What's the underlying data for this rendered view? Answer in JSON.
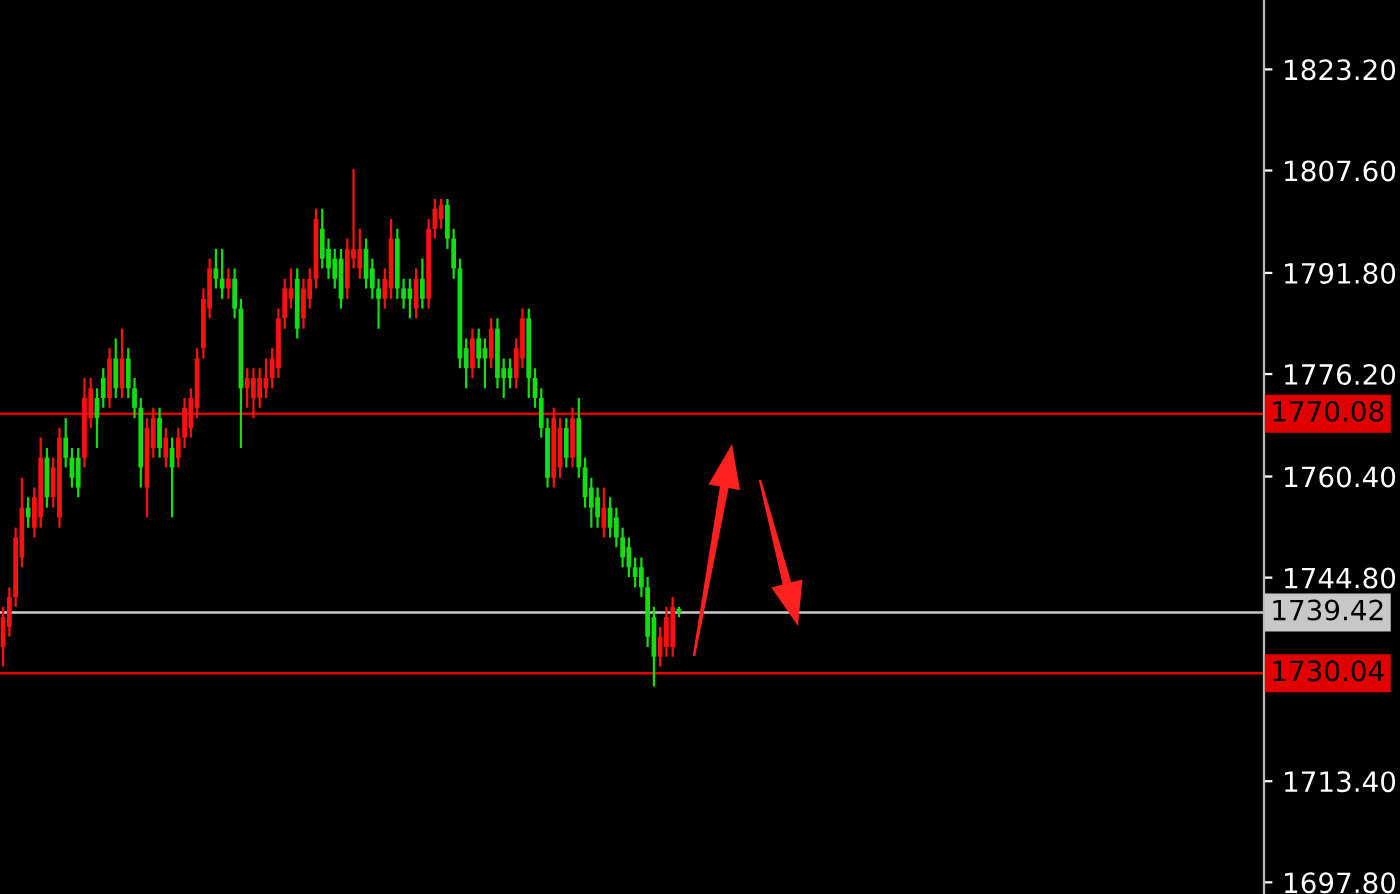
{
  "chart_data": {
    "type": "candlestick",
    "categories": [
      null,
      null,
      null,
      null,
      null,
      null,
      null,
      null,
      null,
      null,
      null,
      null,
      null,
      null,
      null,
      null,
      null,
      null,
      null,
      null,
      null,
      null,
      null,
      null,
      null,
      null,
      null,
      null,
      null,
      null,
      null,
      null,
      null,
      null,
      null,
      null,
      null,
      null,
      null,
      null,
      null,
      null,
      null,
      null,
      null,
      null,
      null,
      null,
      null,
      null,
      null,
      null,
      null,
      null,
      null,
      null,
      null,
      null,
      null,
      null,
      null,
      null,
      null,
      null,
      null,
      null,
      null,
      null,
      null,
      null,
      null,
      null,
      null,
      null,
      null,
      null,
      null,
      null,
      null,
      null,
      null,
      null,
      null,
      null,
      null,
      null,
      null,
      null,
      null,
      null,
      null,
      null,
      null,
      null,
      null,
      null,
      null,
      null,
      null,
      null,
      null,
      null,
      null,
      null,
      null,
      null,
      null,
      null,
      null,
      null,
      null,
      null,
      null,
      null,
      null,
      null,
      null,
      null,
      null,
      null,
      null,
      null,
      null,
      null,
      null,
      null,
      null,
      null,
      null,
      null,
      null,
      null,
      null,
      null,
      null,
      null,
      null,
      null,
      null,
      null,
      null,
      null,
      null,
      null,
      null,
      null,
      null,
      null,
      null,
      null,
      null,
      null,
      null,
      null,
      null,
      null,
      null,
      null,
      null,
      null,
      null,
      null,
      null,
      null,
      null,
      null,
      null,
      null,
      null,
      null,
      null,
      null,
      null,
      null,
      null,
      null,
      null,
      null,
      null,
      null,
      null,
      null,
      null,
      null,
      null,
      null,
      null,
      null,
      null,
      null,
      null,
      null,
      null,
      null,
      null,
      null,
      null,
      null,
      null,
      null,
      null,
      null
    ],
    "ohlc": [
      [
        1734.1,
        1740.3,
        1731.1,
        1738.7
      ],
      [
        1737.2,
        1743.3,
        1735.7,
        1741.8
      ],
      [
        1741.8,
        1752.5,
        1740.3,
        1751.0
      ],
      [
        1747.9,
        1760.2,
        1746.4,
        1755.6
      ],
      [
        1755.6,
        1757.2,
        1752.5,
        1754.1
      ],
      [
        1752.5,
        1758.7,
        1751.0,
        1757.2
      ],
      [
        1754.1,
        1766.4,
        1752.5,
        1763.3
      ],
      [
        1763.3,
        1764.8,
        1755.6,
        1757.2
      ],
      [
        1757.2,
        1763.3,
        1755.6,
        1761.8
      ],
      [
        1754.1,
        1767.9,
        1752.5,
        1766.4
      ],
      [
        1766.4,
        1769.4,
        1761.8,
        1763.3
      ],
      [
        1763.3,
        1764.8,
        1758.7,
        1760.2
      ],
      [
        1763.3,
        1764.8,
        1757.2,
        1758.7
      ],
      [
        1763.3,
        1775.6,
        1761.8,
        1772.5
      ],
      [
        1769.4,
        1775.6,
        1767.9,
        1774.0
      ],
      [
        1772.5,
        1774.0,
        1764.8,
        1769.4
      ],
      [
        1775.6,
        1777.1,
        1771.0,
        1772.5
      ],
      [
        1772.5,
        1780.2,
        1771.0,
        1778.6
      ],
      [
        1778.6,
        1781.7,
        1772.5,
        1774.0
      ],
      [
        1774.0,
        1783.2,
        1772.5,
        1778.6
      ],
      [
        1778.6,
        1780.2,
        1772.5,
        1774.0
      ],
      [
        1774.0,
        1775.6,
        1769.4,
        1771.0
      ],
      [
        1771.0,
        1772.5,
        1758.7,
        1761.8
      ],
      [
        1758.7,
        1769.4,
        1754.1,
        1767.9
      ],
      [
        1764.8,
        1771.0,
        1763.3,
        1769.4
      ],
      [
        1769.4,
        1771.0,
        1763.3,
        1764.8
      ],
      [
        1763.3,
        1767.9,
        1761.8,
        1766.4
      ],
      [
        1764.8,
        1766.4,
        1754.1,
        1761.8
      ],
      [
        1763.3,
        1767.9,
        1761.8,
        1766.4
      ],
      [
        1766.4,
        1772.5,
        1764.8,
        1771.0
      ],
      [
        1767.9,
        1774.0,
        1766.4,
        1772.5
      ],
      [
        1771.0,
        1780.2,
        1769.4,
        1778.6
      ],
      [
        1780.2,
        1789.4,
        1778.6,
        1787.8
      ],
      [
        1786.3,
        1794.0,
        1784.8,
        1792.5
      ],
      [
        1792.5,
        1795.5,
        1789.4,
        1790.9
      ],
      [
        1790.9,
        1795.5,
        1787.8,
        1789.4
      ],
      [
        1789.4,
        1792.5,
        1787.8,
        1790.9
      ],
      [
        1790.9,
        1792.5,
        1784.8,
        1786.3
      ],
      [
        1786.3,
        1787.8,
        1764.8,
        1774.0
      ],
      [
        1774.0,
        1777.1,
        1771.0,
        1775.6
      ],
      [
        1772.5,
        1777.1,
        1769.4,
        1775.6
      ],
      [
        1772.5,
        1777.1,
        1771.0,
        1775.6
      ],
      [
        1774.0,
        1778.6,
        1772.5,
        1775.6
      ],
      [
        1775.6,
        1780.2,
        1774.0,
        1778.6
      ],
      [
        1777.1,
        1786.3,
        1775.6,
        1784.8
      ],
      [
        1784.8,
        1790.9,
        1783.2,
        1789.4
      ],
      [
        1787.8,
        1792.5,
        1786.3,
        1789.4
      ],
      [
        1790.9,
        1792.5,
        1781.7,
        1783.2
      ],
      [
        1784.8,
        1790.9,
        1783.2,
        1789.4
      ],
      [
        1787.8,
        1792.5,
        1786.3,
        1790.9
      ],
      [
        1790.9,
        1801.7,
        1789.4,
        1800.1
      ],
      [
        1798.6,
        1801.7,
        1792.5,
        1794.0
      ],
      [
        1795.5,
        1797.1,
        1790.9,
        1792.5
      ],
      [
        1794.0,
        1795.5,
        1789.4,
        1790.9
      ],
      [
        1794.0,
        1795.5,
        1786.3,
        1787.8
      ],
      [
        1789.4,
        1797.1,
        1787.8,
        1795.5
      ],
      [
        1794.0,
        1807.8,
        1792.5,
        1795.5
      ],
      [
        1792.5,
        1798.6,
        1790.9,
        1795.5
      ],
      [
        1795.5,
        1797.1,
        1789.4,
        1790.9
      ],
      [
        1792.5,
        1794.0,
        1787.8,
        1789.4
      ],
      [
        1789.4,
        1790.9,
        1783.2,
        1787.8
      ],
      [
        1787.8,
        1792.5,
        1786.3,
        1790.9
      ],
      [
        1789.4,
        1800.1,
        1787.8,
        1797.1
      ],
      [
        1797.1,
        1798.6,
        1787.8,
        1789.4
      ],
      [
        1789.4,
        1790.9,
        1786.3,
        1787.8
      ],
      [
        1789.4,
        1790.9,
        1784.8,
        1787.8
      ],
      [
        1786.3,
        1792.5,
        1784.8,
        1790.9
      ],
      [
        1790.9,
        1794.0,
        1786.3,
        1787.8
      ],
      [
        1787.8,
        1800.1,
        1786.3,
        1798.6
      ],
      [
        1798.6,
        1803.2,
        1797.1,
        1801.7
      ],
      [
        1800.1,
        1803.2,
        1798.6,
        1802.3
      ],
      [
        1802.3,
        1803.2,
        1795.5,
        1797.1
      ],
      [
        1797.1,
        1798.6,
        1790.9,
        1792.5
      ],
      [
        1792.5,
        1794.0,
        1777.1,
        1778.6
      ],
      [
        1780.2,
        1781.7,
        1774.0,
        1777.1
      ],
      [
        1777.1,
        1783.2,
        1775.6,
        1781.7
      ],
      [
        1781.7,
        1783.2,
        1777.1,
        1778.6
      ],
      [
        1780.2,
        1781.7,
        1774.0,
        1778.6
      ],
      [
        1778.6,
        1784.8,
        1777.1,
        1783.2
      ],
      [
        1783.2,
        1784.8,
        1774.0,
        1775.6
      ],
      [
        1777.1,
        1778.6,
        1772.5,
        1775.6
      ],
      [
        1777.1,
        1778.6,
        1774.0,
        1775.6
      ],
      [
        1775.6,
        1781.7,
        1774.0,
        1780.2
      ],
      [
        1778.6,
        1786.3,
        1777.1,
        1784.8
      ],
      [
        1784.8,
        1786.3,
        1772.5,
        1775.6
      ],
      [
        1775.6,
        1777.1,
        1771.0,
        1772.5
      ],
      [
        1772.5,
        1774.0,
        1766.4,
        1767.9
      ],
      [
        1767.9,
        1769.4,
        1758.7,
        1760.2
      ],
      [
        1760.2,
        1771.0,
        1758.7,
        1769.4
      ],
      [
        1761.8,
        1769.4,
        1760.2,
        1767.9
      ],
      [
        1767.9,
        1769.4,
        1761.8,
        1763.3
      ],
      [
        1763.3,
        1771.0,
        1761.8,
        1769.4
      ],
      [
        1769.4,
        1772.5,
        1760.2,
        1761.8
      ],
      [
        1761.8,
        1763.3,
        1755.6,
        1757.2
      ],
      [
        1758.7,
        1760.2,
        1752.5,
        1755.6
      ],
      [
        1757.2,
        1758.7,
        1752.5,
        1754.1
      ],
      [
        1752.5,
        1758.7,
        1751.0,
        1755.6
      ],
      [
        1755.6,
        1757.2,
        1751.0,
        1752.5
      ],
      [
        1754.1,
        1755.6,
        1749.5,
        1751.0
      ],
      [
        1751.0,
        1752.5,
        1746.4,
        1747.9
      ],
      [
        1749.5,
        1751.0,
        1744.9,
        1746.4
      ],
      [
        1746.4,
        1747.9,
        1743.3,
        1744.9
      ],
      [
        1746.4,
        1747.9,
        1741.8,
        1743.3
      ],
      [
        1743.3,
        1744.9,
        1734.1,
        1735.7
      ],
      [
        1738.7,
        1740.3,
        1728.0,
        1732.6
      ],
      [
        1732.6,
        1737.2,
        1731.1,
        1735.7
      ],
      [
        1734.1,
        1740.3,
        1732.6,
        1738.7
      ],
      [
        1734.1,
        1741.8,
        1732.6,
        1740.3
      ],
      [
        1740.0,
        1740.3,
        1738.7,
        1739.4
      ],
      null,
      null,
      null,
      null,
      null,
      null,
      null,
      null,
      null,
      null,
      null,
      null,
      null,
      null,
      null,
      null,
      null,
      null,
      null,
      null,
      null,
      null,
      null,
      null,
      null,
      null,
      null,
      null,
      null,
      null,
      null,
      null,
      null,
      null,
      null,
      null,
      null,
      null,
      null,
      null,
      null,
      null,
      null,
      null,
      null,
      null,
      null,
      null,
      null,
      null,
      null,
      null,
      null,
      null,
      null,
      null,
      null,
      null,
      null,
      null,
      null,
      null,
      null,
      null,
      null,
      null,
      null,
      null,
      null,
      null,
      null,
      null,
      null,
      null,
      null,
      null,
      null,
      null,
      null,
      null,
      null,
      null,
      null,
      null,
      null,
      null,
      null,
      null,
      null,
      null,
      null,
      null,
      null
    ],
    "colors": [
      "#ff1010",
      "#ff1010",
      "#ff1010",
      "#ff1010",
      "#10e010",
      "#ff1010",
      "#ff1010",
      "#10e010",
      "#ff1010",
      "#ff1010",
      "#10e010",
      "#10e010",
      "#10e010",
      "#ff1010",
      "#ff1010",
      "#10e010",
      "#10e010",
      "#ff1010",
      "#10e010",
      "#ff1010",
      "#10e010",
      "#10e010",
      "#10e010",
      "#ff1010",
      "#ff1010",
      "#10e010",
      "#ff1010",
      "#10e010",
      "#ff1010",
      "#ff1010",
      "#ff1010",
      "#ff1010",
      "#ff1010",
      "#ff1010",
      "#10e010",
      "#10e010",
      "#ff1010",
      "#10e010",
      "#10e010",
      "#ff1010",
      "#ff1010",
      "#ff1010",
      "#ff1010",
      "#ff1010",
      "#ff1010",
      "#ff1010",
      "#ff1010",
      "#10e010",
      "#ff1010",
      "#ff1010",
      "#ff1010",
      "#10e010",
      "#10e010",
      "#10e010",
      "#10e010",
      "#ff1010",
      "#ff1010",
      "#ff1010",
      "#10e010",
      "#10e010",
      "#10e010",
      "#ff1010",
      "#ff1010",
      "#10e010",
      "#10e010",
      "#10e010",
      "#ff1010",
      "#10e010",
      "#ff1010",
      "#ff1010",
      "#ff1010",
      "#10e010",
      "#10e010",
      "#10e010",
      "#10e010",
      "#ff1010",
      "#10e010",
      "#10e010",
      "#ff1010",
      "#10e010",
      "#10e010",
      "#10e010",
      "#ff1010",
      "#ff1010",
      "#10e010",
      "#10e010",
      "#10e010",
      "#10e010",
      "#ff1010",
      "#ff1010",
      "#10e010",
      "#ff1010",
      "#10e010",
      "#10e010",
      "#10e010",
      "#10e010",
      "#ff1010",
      "#10e010",
      "#10e010",
      "#10e010",
      "#10e010",
      "#10e010",
      "#10e010",
      "#10e010",
      "#10e010",
      "#ff1010",
      "#ff1010",
      "#ff1010",
      "#10e010",
      null,
      null,
      null,
      null,
      null,
      null,
      null,
      null,
      null,
      null,
      null,
      null,
      null,
      null,
      null,
      null,
      null,
      null,
      null,
      null,
      null,
      null,
      null,
      null,
      null,
      null,
      null,
      null,
      null,
      null,
      null,
      null,
      null,
      null,
      null,
      null,
      null,
      null,
      null,
      null,
      null,
      null,
      null,
      null,
      null,
      null,
      null,
      null,
      null,
      null,
      null,
      null,
      null,
      null,
      null,
      null,
      null,
      null,
      null,
      null,
      null,
      null,
      null,
      null,
      null,
      null,
      null,
      null,
      null,
      null,
      null,
      null,
      null,
      null,
      null,
      null,
      null,
      null,
      null,
      null,
      null,
      null,
      null,
      null,
      null,
      null,
      null,
      null,
      null,
      null,
      null,
      null,
      null
    ],
    "ylim": [
      1696.0,
      1833.9
    ],
    "yticks": [
      {
        "value": 1823.2,
        "label": "1823.20"
      },
      {
        "value": 1807.6,
        "label": "1807.60"
      },
      {
        "value": 1791.8,
        "label": "1791.80"
      },
      {
        "value": 1776.2,
        "label": "1776.20"
      },
      {
        "value": 1760.4,
        "label": "1760.40"
      },
      {
        "value": 1744.8,
        "label": "1744.80"
      },
      {
        "value": 1713.4,
        "label": "1713.40"
      },
      {
        "value": 1697.8,
        "label": "1697.80"
      }
    ],
    "tick_labels": "y",
    "ref_lines": [
      {
        "axis": "y",
        "value": 1770.08,
        "label": "1770.08",
        "color": "#e00000"
      },
      {
        "axis": "y",
        "value": 1739.42,
        "label": "1739.42",
        "color": "#c8c8c8"
      },
      {
        "axis": "y",
        "value": 1730.04,
        "label": "1730.04",
        "color": "#e00000"
      }
    ]
  }
}
